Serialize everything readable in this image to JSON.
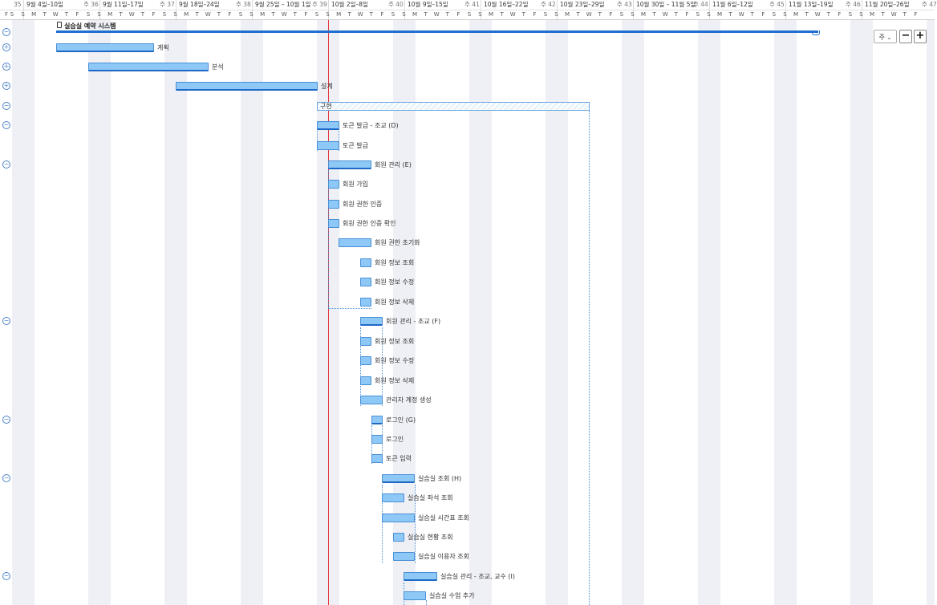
{
  "header": {
    "weeks": [
      {
        "label": "9월 4일–10일"
      },
      {
        "label": "9월 11일–17일"
      },
      {
        "label": "9월 18일–24일"
      },
      {
        "label": "9월 25일 – 10월 1일"
      },
      {
        "label": "10월 2일–8일"
      },
      {
        "label": "10월 9일–15일"
      },
      {
        "label": "10월 16일–22일"
      },
      {
        "label": "10월 23일–29일"
      },
      {
        "label": "10월 30일 – 11월 5일"
      },
      {
        "label": "11월 6일–12일"
      },
      {
        "label": "11월 13일–19일"
      },
      {
        "label": "11월 20일–26일"
      }
    ],
    "week_numbers": [
      "35",
      "주 36",
      "주 37",
      "주 38",
      "주 39",
      "주 40",
      "주 41",
      "주 42",
      "주 43",
      "주 44",
      "주 45",
      "주 46",
      "주 47"
    ],
    "day_letters": [
      "S",
      "S",
      "M",
      "T",
      "W",
      "T",
      "F"
    ]
  },
  "zoom": {
    "select_value": "주",
    "chevron_icon": "chevron-down-icon",
    "minus": "−",
    "plus": "+"
  },
  "project": {
    "title": "실습실 예약 시스템",
    "icon": "clipboard-icon"
  },
  "toggles": {
    "collapse": "−",
    "expand": "+"
  },
  "tasks": [
    {
      "label": "계획"
    },
    {
      "label": "분석"
    },
    {
      "label": "설계"
    },
    {
      "label": "구현"
    },
    {
      "label": "토큰 발급 - 조교 (D)"
    },
    {
      "label": "토큰 발급"
    },
    {
      "label": "회원 관리 (E)"
    },
    {
      "label": "회원 가입"
    },
    {
      "label": "회원 권한 인증"
    },
    {
      "label": "회원 권한 인증 확인"
    },
    {
      "label": "회원 권한 초기화"
    },
    {
      "label": "회원 정보 조회"
    },
    {
      "label": "회원 정보 수정"
    },
    {
      "label": "회원 정보 삭제"
    },
    {
      "label": "회원 관리  - 조교 (F)"
    },
    {
      "label": "회원 정보 조회"
    },
    {
      "label": "회원 정보 수정"
    },
    {
      "label": "회원 정보 삭제"
    },
    {
      "label": "관리자 계정 생성"
    },
    {
      "label": "로그인 (G)"
    },
    {
      "label": "로그인"
    },
    {
      "label": "토큰 입력"
    },
    {
      "label": "실습실 조회 (H)"
    },
    {
      "label": "실습실 좌석 조회"
    },
    {
      "label": "실습실 시간표 조회"
    },
    {
      "label": "실습실 현황 조회"
    },
    {
      "label": "실습실 이용자 조회"
    },
    {
      "label": "실습실 관리 - 조교, 교수 (I)"
    },
    {
      "label": "실습실 수업 추가"
    }
  ]
}
